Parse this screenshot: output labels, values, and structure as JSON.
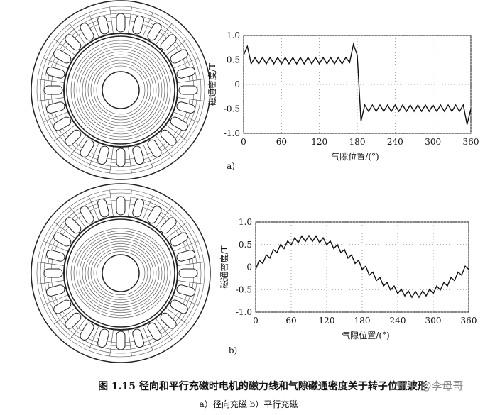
{
  "figure": {
    "caption": "图 1.15   径向和平行充磁时电机的磁力线和气隙磁通密度关于转子位置波形",
    "subcaption": "a）径向充磁   b）平行充磁",
    "watermark": "知乎 @李母哥"
  },
  "chart_data": [
    {
      "type": "line",
      "panel_label": "a)",
      "x_label": "气隙位置/(°)",
      "y_label": "磁通密度/T",
      "x": [
        0,
        6,
        12,
        18,
        24,
        30,
        36,
        42,
        48,
        54,
        60,
        66,
        72,
        78,
        84,
        90,
        96,
        102,
        108,
        114,
        120,
        126,
        132,
        138,
        144,
        150,
        156,
        162,
        168,
        174,
        180,
        186,
        192,
        198,
        204,
        210,
        216,
        222,
        228,
        234,
        240,
        246,
        252,
        258,
        264,
        270,
        276,
        282,
        288,
        294,
        300,
        306,
        312,
        318,
        324,
        330,
        336,
        342,
        348,
        354,
        360
      ],
      "series": [
        {
          "color": "#111111",
          "values": [
            0.6,
            0.78,
            0.42,
            0.55,
            0.42,
            0.55,
            0.42,
            0.55,
            0.42,
            0.55,
            0.42,
            0.55,
            0.42,
            0.55,
            0.42,
            0.55,
            0.42,
            0.55,
            0.42,
            0.55,
            0.42,
            0.55,
            0.42,
            0.55,
            0.42,
            0.55,
            0.42,
            0.55,
            0.45,
            0.82,
            0.6,
            -0.75,
            -0.42,
            -0.55,
            -0.42,
            -0.55,
            -0.42,
            -0.55,
            -0.42,
            -0.55,
            -0.42,
            -0.55,
            -0.42,
            -0.55,
            -0.42,
            -0.55,
            -0.42,
            -0.55,
            -0.42,
            -0.55,
            -0.42,
            -0.55,
            -0.42,
            -0.55,
            -0.42,
            -0.55,
            -0.42,
            -0.55,
            -0.42,
            -0.82,
            -0.5
          ]
        }
      ],
      "xlim": [
        0,
        360
      ],
      "ylim": [
        -1,
        1
      ],
      "xticks": [
        0,
        60,
        120,
        180,
        240,
        300,
        360
      ],
      "yticks": [
        {
          "value": -1,
          "label": "-1.0"
        },
        -0.5,
        0,
        0.5,
        {
          "value": 1,
          "label": "1.0"
        }
      ],
      "grid": true
    },
    {
      "type": "line",
      "panel_label": "b)",
      "x_label": "气隙位置/(°)",
      "y_label": "磁通密度/T",
      "x": [
        0,
        6,
        12,
        18,
        24,
        30,
        36,
        42,
        48,
        54,
        60,
        66,
        72,
        78,
        84,
        90,
        96,
        102,
        108,
        114,
        120,
        126,
        132,
        138,
        144,
        150,
        156,
        162,
        168,
        174,
        180,
        186,
        192,
        198,
        204,
        210,
        216,
        222,
        228,
        234,
        240,
        246,
        252,
        258,
        264,
        270,
        276,
        282,
        288,
        294,
        300,
        306,
        312,
        318,
        324,
        330,
        336,
        342,
        348,
        354,
        360
      ],
      "series": [
        {
          "color": "#111111",
          "values": [
            -0.05,
            0.15,
            0.08,
            0.27,
            0.2,
            0.39,
            0.32,
            0.5,
            0.41,
            0.58,
            0.49,
            0.65,
            0.54,
            0.69,
            0.57,
            0.7,
            0.57,
            0.69,
            0.54,
            0.65,
            0.49,
            0.58,
            0.41,
            0.5,
            0.32,
            0.39,
            0.2,
            0.27,
            0.08,
            0.15,
            -0.05,
            0.02,
            -0.18,
            -0.11,
            -0.3,
            -0.23,
            -0.42,
            -0.34,
            -0.51,
            -0.42,
            -0.59,
            -0.49,
            -0.64,
            -0.53,
            -0.67,
            -0.54,
            -0.67,
            -0.53,
            -0.64,
            -0.49,
            -0.59,
            -0.42,
            -0.51,
            -0.34,
            -0.42,
            -0.23,
            -0.3,
            -0.11,
            -0.18,
            0.02,
            -0.05
          ]
        }
      ],
      "xlim": [
        0,
        360
      ],
      "ylim": [
        -1,
        1
      ],
      "xticks": [
        0,
        60,
        120,
        180,
        240,
        300,
        360
      ],
      "yticks": [
        {
          "value": -1,
          "label": "-1.0"
        },
        -0.5,
        0,
        0.5,
        {
          "value": 1,
          "label": "1.0"
        }
      ],
      "grid": true
    }
  ]
}
